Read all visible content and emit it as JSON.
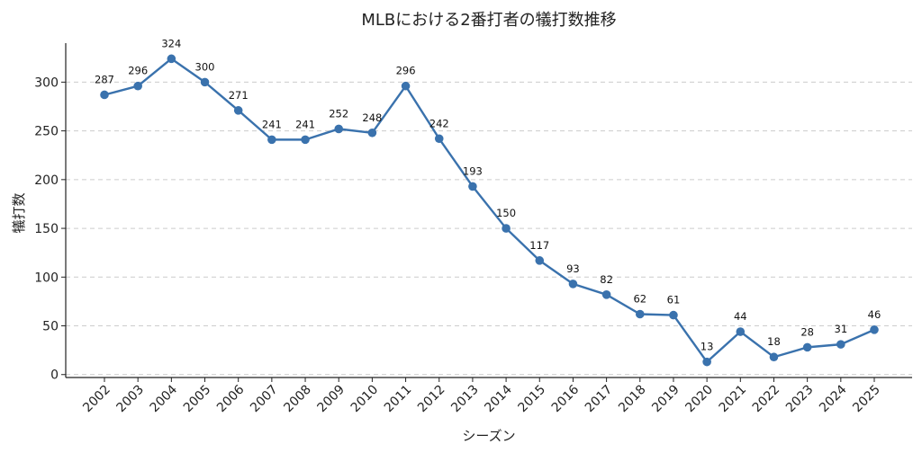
{
  "chart_data": {
    "type": "line",
    "title": "MLBにおける2番打者の犠打数推移",
    "xlabel": "シーズン",
    "ylabel": "犠打数",
    "ylim": [
      -3,
      340
    ],
    "yticks": [
      0,
      50,
      100,
      150,
      200,
      250,
      300
    ],
    "grid": "horizontal-dashed",
    "color": "#3a72ad",
    "categories": [
      "2002",
      "2003",
      "2004",
      "2005",
      "2006",
      "2007",
      "2008",
      "2009",
      "2010",
      "2011",
      "2012",
      "2013",
      "2014",
      "2015",
      "2016",
      "2017",
      "2018",
      "2019",
      "2020",
      "2021",
      "2022",
      "2023",
      "2024",
      "2025"
    ],
    "series": [
      {
        "name": "犠打数",
        "values": [
          287,
          296,
          324,
          300,
          271,
          241,
          241,
          252,
          248,
          296,
          242,
          193,
          150,
          117,
          93,
          82,
          62,
          61,
          13,
          44,
          18,
          28,
          31,
          46
        ]
      }
    ]
  }
}
